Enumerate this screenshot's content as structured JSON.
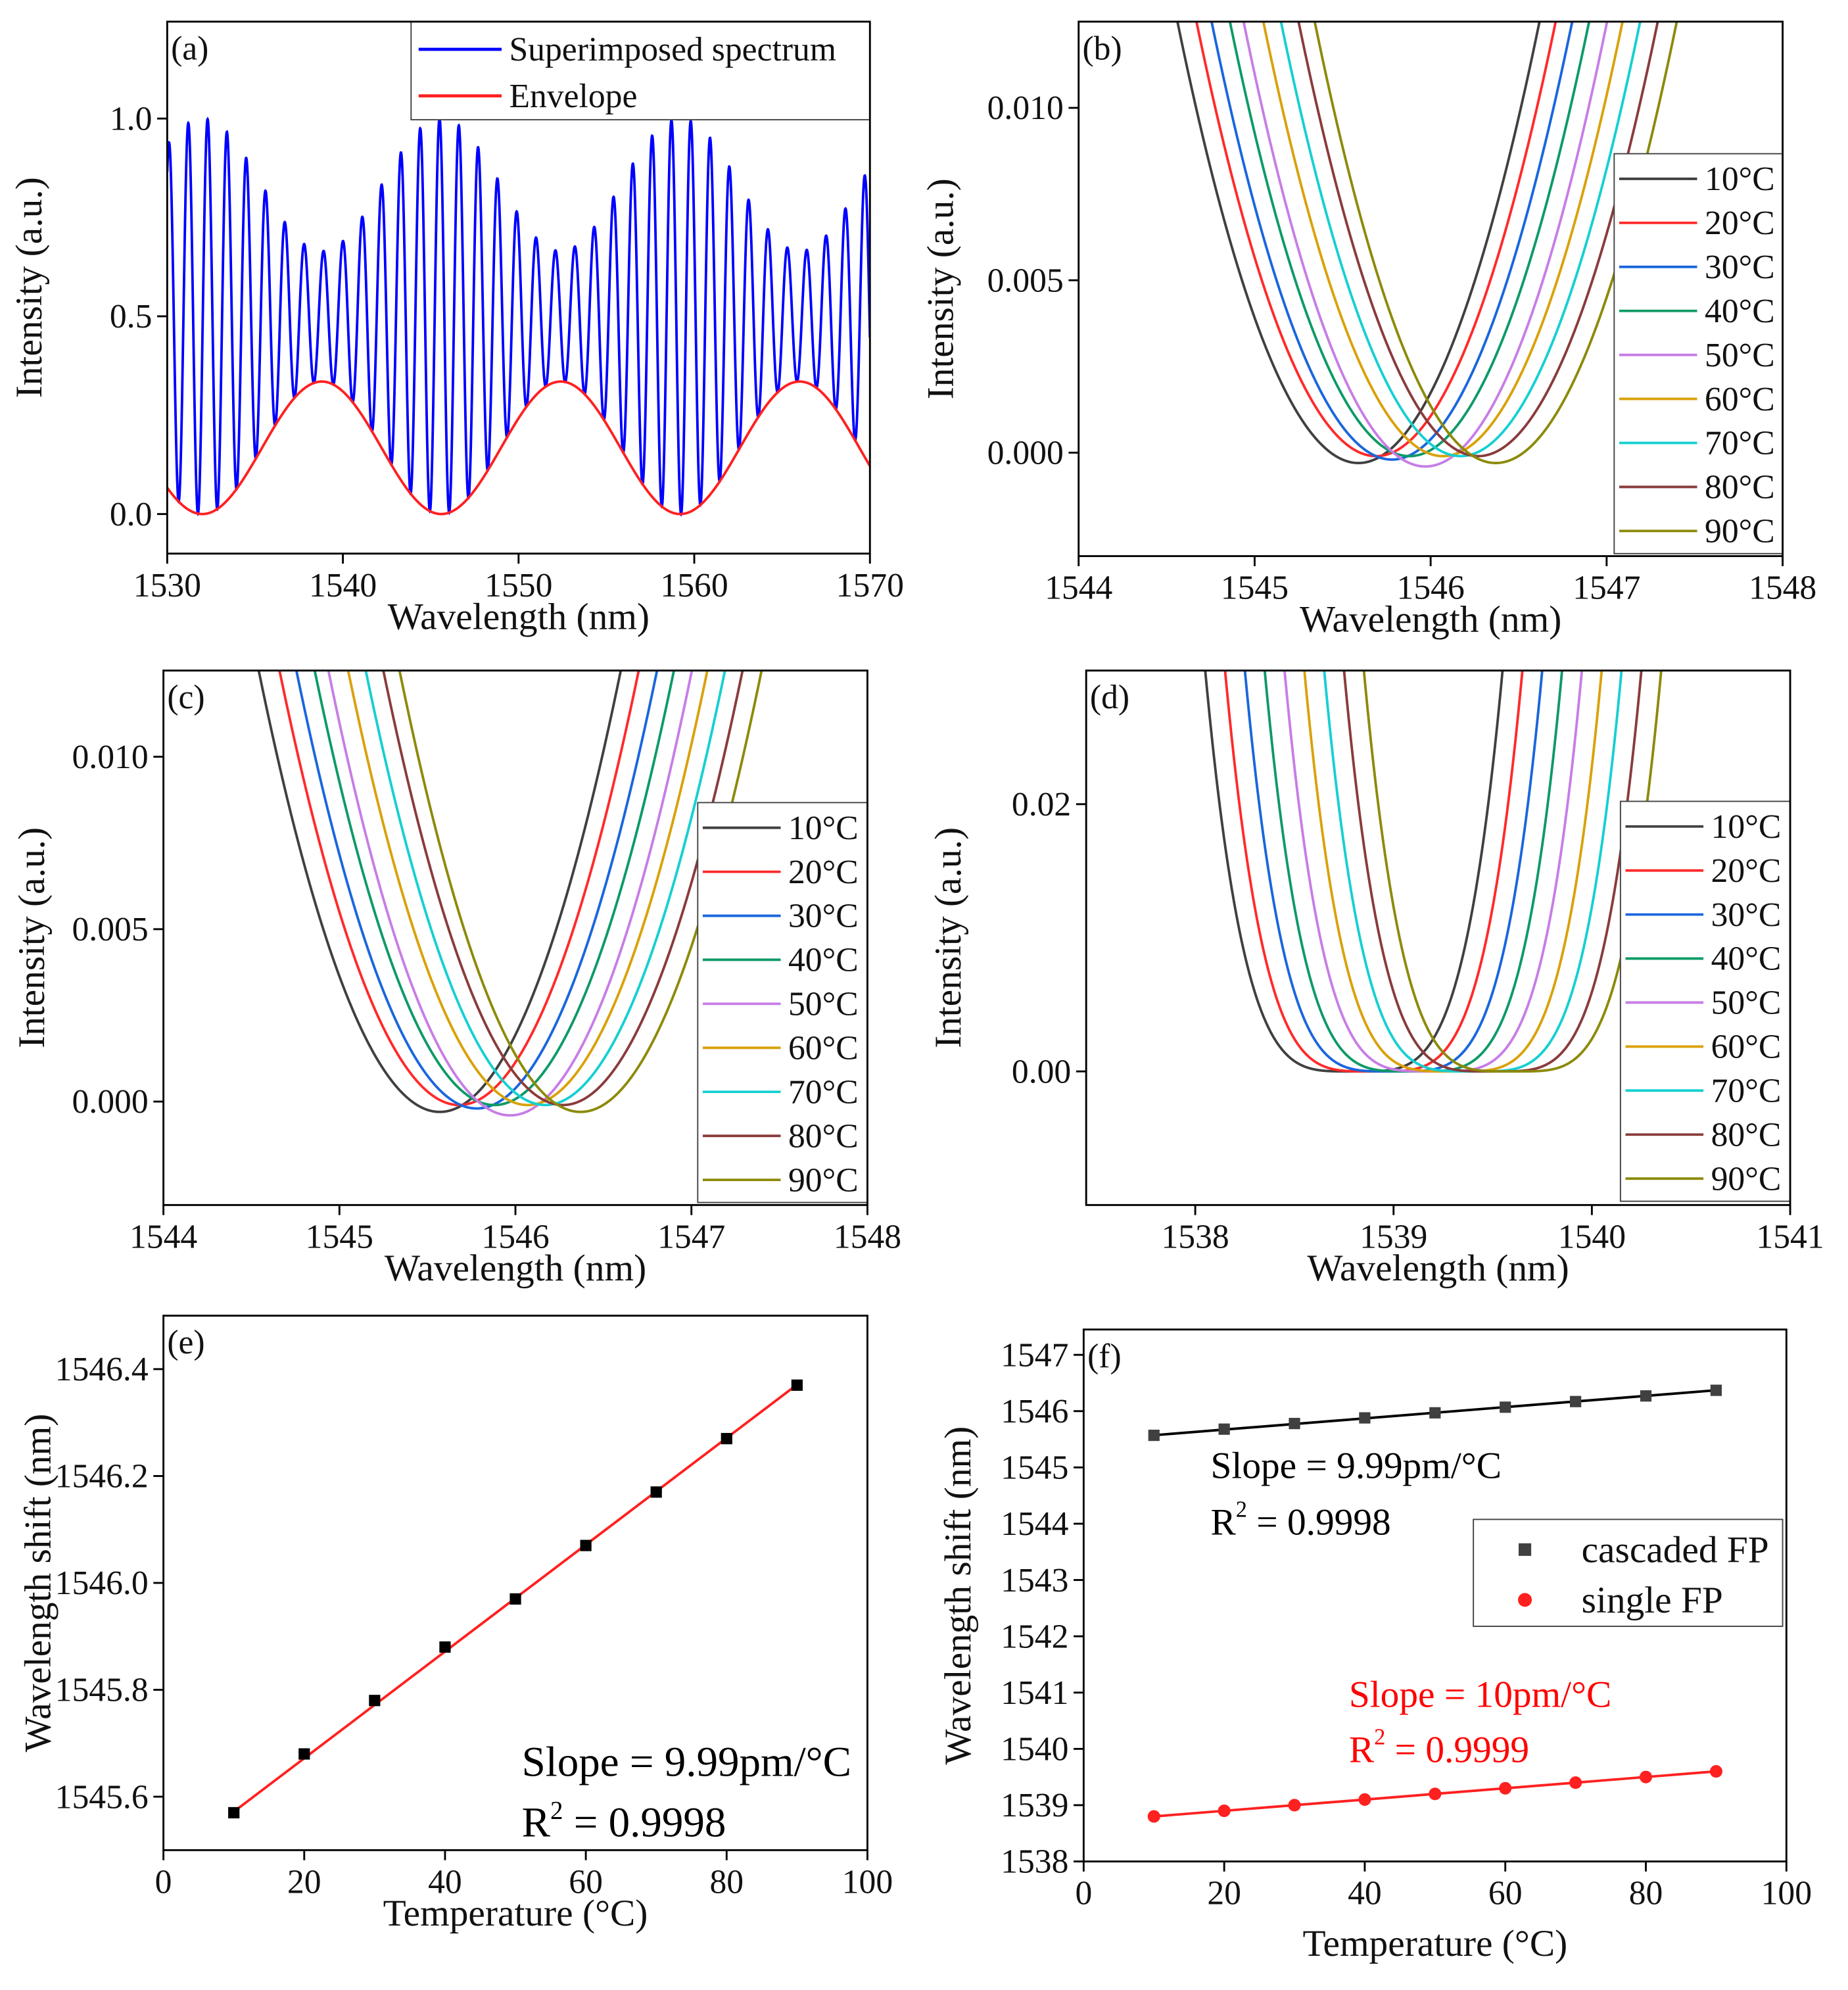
{
  "series_colors": {
    "10": "#404040",
    "20": "#ff2a2a",
    "30": "#1a66dd",
    "40": "#0e9a66",
    "50": "#c77de6",
    "60": "#d9a10a",
    "70": "#16cfd2",
    "80": "#8a3b3b",
    "90": "#8c8a0a"
  },
  "chart_data": [
    {
      "id": "a",
      "panel_label": "(a)",
      "type": "line",
      "xlabel": "Wavelength (nm)",
      "ylabel": "Intensity (a.u.)",
      "xlim": [
        1530,
        1570
      ],
      "ylim": [
        -0.1,
        1.245
      ],
      "xticks": [
        "1530",
        "1540",
        "1550",
        "1560",
        "1570"
      ],
      "yticks": [
        "0.0",
        "0.5",
        "1.0"
      ],
      "legend": [
        {
          "name": "Superimposed spectrum",
          "color": "#0000ff"
        },
        {
          "name": "Envelope",
          "color": "#ff2020"
        }
      ],
      "model": {
        "envelope_max": 0.335,
        "envelope_period_nm": 13.6,
        "envelope_min_at_nm": 1532.0,
        "fringe_period_nm": 1.1,
        "fringe_peak_at_nm": 1545.5
      }
    },
    {
      "id": "b",
      "panel_label": "(b)",
      "type": "line",
      "xlabel": "Wavelength (nm)",
      "ylabel": "Intensity (a.u.)",
      "xlim": [
        1544,
        1548
      ],
      "ylim": [
        -0.003,
        0.0125
      ],
      "xticks": [
        "1544",
        "1545",
        "1546",
        "1547",
        "1548"
      ],
      "yticks": [
        "0.000",
        "0.005",
        "0.010"
      ],
      "series": [
        {
          "name": "10°C",
          "dip_nm": 1545.59,
          "min": -0.0003
        },
        {
          "name": "20°C",
          "dip_nm": 1545.69,
          "min": -0.0001
        },
        {
          "name": "30°C",
          "dip_nm": 1545.78,
          "min": -0.0002
        },
        {
          "name": "40°C",
          "dip_nm": 1545.88,
          "min": -0.0001
        },
        {
          "name": "50°C",
          "dip_nm": 1545.97,
          "min": -0.0004
        },
        {
          "name": "60°C",
          "dip_nm": 1546.07,
          "min": -0.0001
        },
        {
          "name": "70°C",
          "dip_nm": 1546.17,
          "min": -0.0001
        },
        {
          "name": "80°C",
          "dip_nm": 1546.27,
          "min": -0.0001
        },
        {
          "name": "90°C",
          "dip_nm": 1546.37,
          "min": -0.0003
        }
      ],
      "shape": {
        "power": 2,
        "coef": 0.0121
      }
    },
    {
      "id": "c",
      "panel_label": "(c)",
      "type": "line",
      "xlabel": "Wavelength (nm)",
      "ylabel": "Intensity (a.u.)",
      "xlim": [
        1544,
        1548
      ],
      "ylim": [
        -0.003,
        0.0125
      ],
      "xticks": [
        "1544",
        "1545",
        "1546",
        "1547",
        "1548"
      ],
      "yticks": [
        "0.000",
        "0.005",
        "0.010"
      ],
      "series": [
        {
          "name": "10°C",
          "dip_nm": 1545.57,
          "min": -0.0003
        },
        {
          "name": "20°C",
          "dip_nm": 1545.68,
          "min": -0.0001
        },
        {
          "name": "30°C",
          "dip_nm": 1545.78,
          "min": -0.0002
        },
        {
          "name": "40°C",
          "dip_nm": 1545.88,
          "min": -0.0001
        },
        {
          "name": "50°C",
          "dip_nm": 1545.97,
          "min": -0.0004
        },
        {
          "name": "60°C",
          "dip_nm": 1546.07,
          "min": -0.0001
        },
        {
          "name": "70°C",
          "dip_nm": 1546.17,
          "min": -0.0001
        },
        {
          "name": "80°C",
          "dip_nm": 1546.27,
          "min": -0.0001
        },
        {
          "name": "90°C",
          "dip_nm": 1546.37,
          "min": -0.0003
        }
      ],
      "shape": {
        "power": 2,
        "coef": 0.0121
      }
    },
    {
      "id": "d",
      "panel_label": "(d)",
      "type": "line",
      "xlabel": "Wavelength (nm)",
      "ylabel": "Intensity (a.u.)",
      "xlim": [
        1537.45,
        1541
      ],
      "ylim": [
        -0.01,
        0.03
      ],
      "xticks": [
        "1538",
        "1539",
        "1540",
        "1541"
      ],
      "yticks": [
        "0.00",
        "0.02"
      ],
      "series": [
        {
          "name": "10°C",
          "dip_nm": 1538.8,
          "min": 0
        },
        {
          "name": "20°C",
          "dip_nm": 1538.9,
          "min": 0
        },
        {
          "name": "30°C",
          "dip_nm": 1539.0,
          "min": 0
        },
        {
          "name": "40°C",
          "dip_nm": 1539.1,
          "min": 0
        },
        {
          "name": "50°C",
          "dip_nm": 1539.2,
          "min": 0
        },
        {
          "name": "60°C",
          "dip_nm": 1539.3,
          "min": 0
        },
        {
          "name": "70°C",
          "dip_nm": 1539.4,
          "min": 0
        },
        {
          "name": "80°C",
          "dip_nm": 1539.5,
          "min": 0
        },
        {
          "name": "90°C",
          "dip_nm": 1539.6,
          "min": 0
        }
      ],
      "shape": {
        "power": 4,
        "coef": 0.095
      }
    },
    {
      "id": "e",
      "panel_label": "(e)",
      "type": "scatter",
      "xlabel": "Temperature (°C)",
      "ylabel": "Wavelength shift (nm)",
      "xlim": [
        0,
        100
      ],
      "ylim": [
        1545.5,
        1546.5
      ],
      "xticks": [
        "0",
        "20",
        "40",
        "60",
        "80",
        "100"
      ],
      "yticks": [
        "1545.6",
        "1545.8",
        "1546.0",
        "1546.2",
        "1546.4"
      ],
      "x": [
        10,
        20,
        30,
        40,
        50,
        60,
        70,
        80,
        90
      ],
      "series": [
        {
          "name": "cascaded FP",
          "values": [
            1545.57,
            1545.68,
            1545.78,
            1545.88,
            1545.97,
            1546.07,
            1546.17,
            1546.27,
            1546.37
          ],
          "color": "#000000",
          "marker": "square",
          "fit": [
            1545.572,
            1546.371
          ]
        }
      ],
      "annotations": [
        {
          "text": "Slope = 9.99pm/°C",
          "color": "#000000"
        },
        {
          "text": "R",
          "sup": "2",
          "rest": " = 0.9998",
          "color": "#000000"
        }
      ]
    },
    {
      "id": "f",
      "panel_label": "(f)",
      "type": "scatter",
      "xlabel": "Temperature (°C)",
      "ylabel": "Wavelength shift (nm)",
      "xlim": [
        0,
        100
      ],
      "ylim": [
        1538,
        1547.45
      ],
      "xticks": [
        "0",
        "20",
        "40",
        "60",
        "80",
        "100"
      ],
      "yticks": [
        "1538",
        "1539",
        "1540",
        "1541",
        "1542",
        "1543",
        "1544",
        "1545",
        "1546",
        "1547"
      ],
      "x": [
        10,
        20,
        30,
        40,
        50,
        60,
        70,
        80,
        90
      ],
      "series": [
        {
          "name": "cascaded FP",
          "values": [
            1545.57,
            1545.68,
            1545.78,
            1545.88,
            1545.97,
            1546.07,
            1546.17,
            1546.27,
            1546.37
          ],
          "color": "#404040",
          "marker": "square",
          "fit": [
            1545.572,
            1546.371
          ]
        },
        {
          "name": "single FP",
          "values": [
            1538.8,
            1538.9,
            1539.0,
            1539.1,
            1539.2,
            1539.3,
            1539.4,
            1539.5,
            1539.6
          ],
          "color": "#ff2020",
          "marker": "circle",
          "fit": [
            1538.8,
            1539.6
          ]
        }
      ],
      "annotations": [
        {
          "text": "Slope = 9.99pm/°C",
          "color": "#000000"
        },
        {
          "text": "R",
          "sup": "2",
          "rest": " = 0.9998",
          "color": "#000000"
        },
        {
          "text": "Slope = 10pm/°C",
          "color": "#ff0000"
        },
        {
          "text": "R",
          "sup": "2",
          "rest": " = 0.9999",
          "color": "#ff0000"
        }
      ]
    }
  ]
}
